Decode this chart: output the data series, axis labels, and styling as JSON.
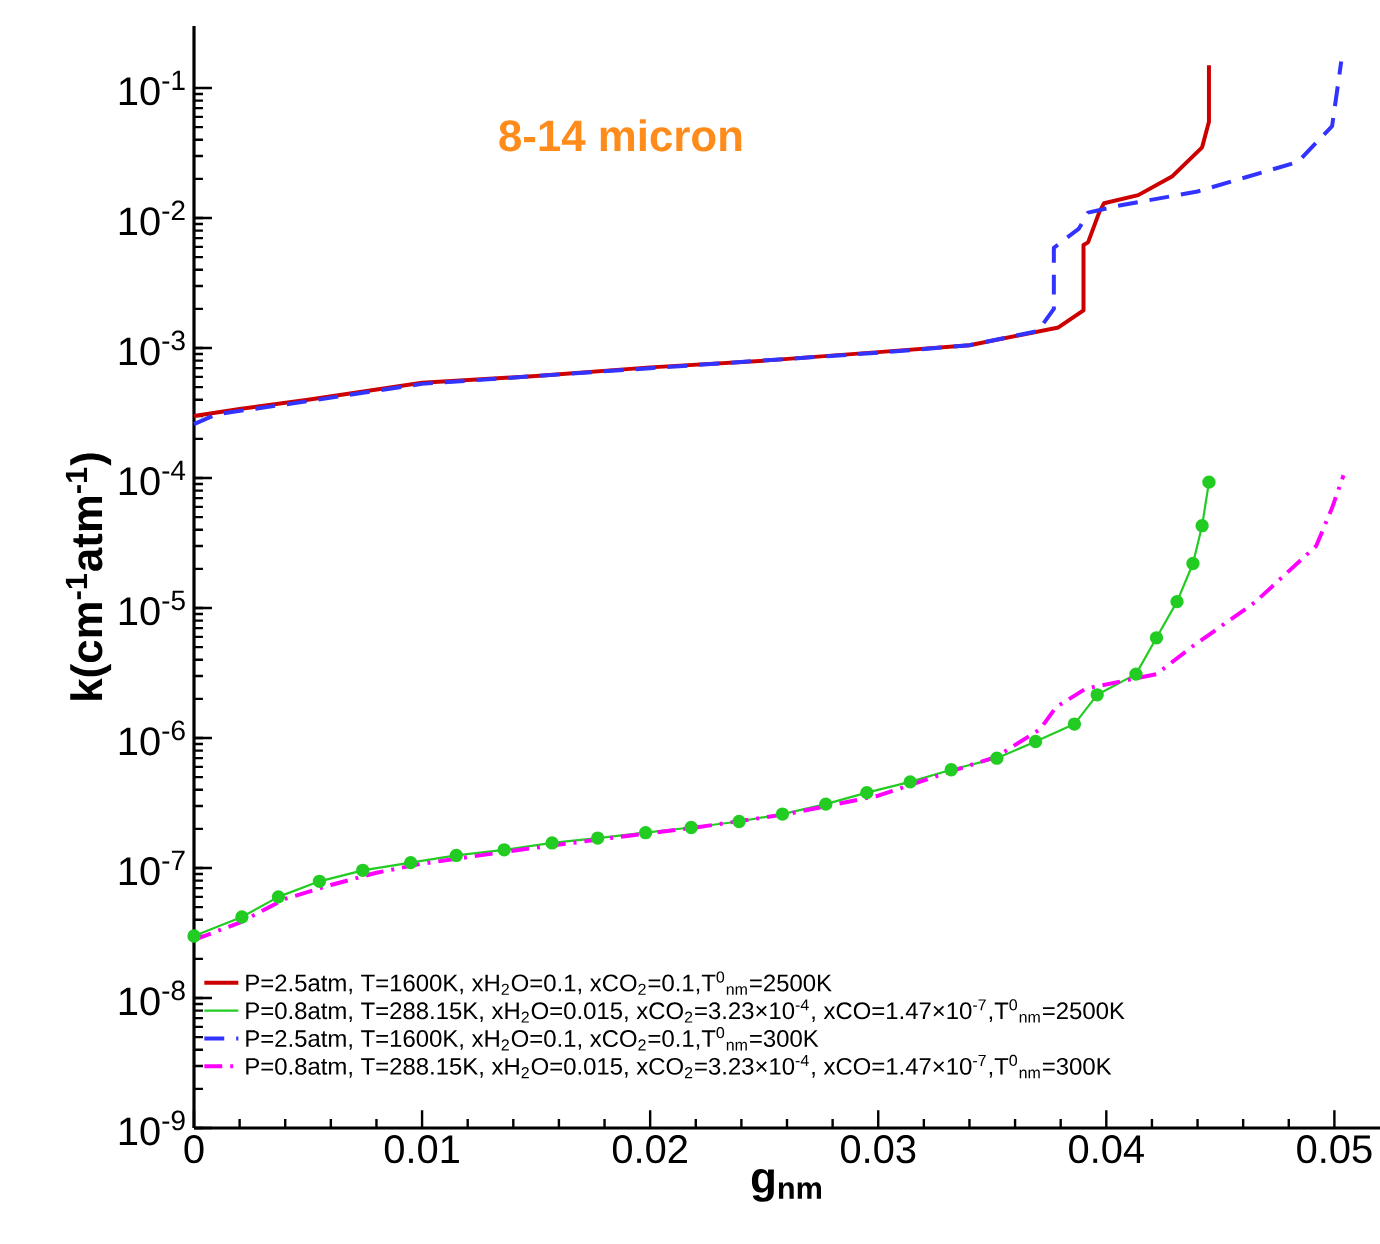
{
  "chart_data": {
    "type": "line",
    "title": "8-14 micron",
    "xlabel": "g$_{nm}$",
    "ylabel": "k(cm$^{-1}$atm$^{-1}$)",
    "log": "y",
    "legend": "bottom left",
    "xlim": [
      0,
      0.052
    ],
    "xticks": [
      0,
      0.01,
      0.02,
      0.03,
      0.04,
      0.05
    ],
    "ylim": [
      1e-09,
      0.3
    ],
    "yticks": [
      {
        "value": 1e-09,
        "label": "10$^{-9}$"
      },
      {
        "value": 1e-08,
        "label": "10$^{-8}$"
      },
      {
        "value": 1e-07,
        "label": "10$^{-7}$"
      },
      {
        "value": 1e-06,
        "label": "10$^{-6}$"
      },
      {
        "value": 1e-05,
        "label": "10$^{-5}$"
      },
      {
        "value": 0.0001,
        "label": "10$^{-4}$"
      },
      {
        "value": 0.001,
        "label": "10$^{-3}$"
      },
      {
        "value": 0.01,
        "label": "10$^{-2}$"
      },
      {
        "value": 0.1,
        "label": "10$^{-1}$"
      }
    ],
    "series": [
      {
        "name": "P=2.5atm, T=1600K, xH$_{2}$O=0.1, xCO$_{2}$=0.1,T$^{0}$$_{nm}$=2500K",
        "color": "#cc0000",
        "line_style": "solid",
        "marker": "none",
        "x": [
          0,
          0.002,
          0.005,
          0.01,
          0.015,
          0.02,
          0.025,
          0.03,
          0.034,
          0.0379,
          0.039,
          0.039,
          0.0392,
          0.0397,
          0.0399,
          0.0414,
          0.0429,
          0.0442,
          0.0445,
          0.0445
        ],
        "values": [
          0.0003,
          0.00034,
          0.0004,
          0.00054,
          0.00061,
          0.00071,
          0.0008,
          0.00093,
          0.00105,
          0.00144,
          0.00195,
          0.0062,
          0.0065,
          0.0112,
          0.013,
          0.015,
          0.021,
          0.035,
          0.055,
          0.15
        ]
      },
      {
        "name": "P=0.8atm, T=288.15K, xH$_{2}$O=0.015, xCO$_{2}$=3.23×10$^{-4}$, xCO=1.47×10$^{-7}$,T$^{0}$$_{nm}$=2500K",
        "color": "#22cc22",
        "line_style": "solid",
        "marker": "circle",
        "x": [
          0,
          0.0021,
          0.0037,
          0.0055,
          0.0074,
          0.0095,
          0.0115,
          0.0136,
          0.0157,
          0.0177,
          0.0198,
          0.0218,
          0.0239,
          0.0258,
          0.0277,
          0.0295,
          0.0314,
          0.0332,
          0.0352,
          0.0369,
          0.0386,
          0.0396,
          0.0413,
          0.0422,
          0.0431,
          0.0438,
          0.0442,
          0.0445
        ],
        "values": [
          3e-08,
          4.2e-08,
          6e-08,
          7.9e-08,
          9.6e-08,
          1.1e-07,
          1.25e-07,
          1.38e-07,
          1.56e-07,
          1.7e-07,
          1.87e-07,
          2.05e-07,
          2.28e-07,
          2.6e-07,
          3.1e-07,
          3.8e-07,
          4.6e-07,
          5.7e-07,
          7e-07,
          9.4e-07,
          1.28e-06,
          2.15e-06,
          3.1e-06,
          5.9e-06,
          1.12e-05,
          2.2e-05,
          4.3e-05,
          9.3e-05
        ]
      },
      {
        "name": "P=2.5atm, T=1600K, xH$_{2}$O=0.1, xCO$_{2}$=0.1,T$^{0}$$_{nm}$=300K",
        "color": "#3333ff",
        "line_style": "dashed",
        "marker": "none",
        "x": [
          0,
          0.001,
          0.005,
          0.01,
          0.02,
          0.03,
          0.034,
          0.037,
          0.0377,
          0.0377,
          0.0388,
          0.0392,
          0.0405,
          0.044,
          0.0484,
          0.0499,
          0.0503
        ],
        "values": [
          0.00026,
          0.00031,
          0.00039,
          0.00053,
          0.0007,
          0.00092,
          0.00105,
          0.00135,
          0.002,
          0.0059,
          0.0083,
          0.011,
          0.0124,
          0.016,
          0.027,
          0.051,
          0.16
        ]
      },
      {
        "name": "P=0.8atm, T=288.15K, xH$_{2}$O=0.015, xCO$_{2}$=3.23×10$^{-4}$, xCO=1.47×10$^{-7}$,T$^{0}$$_{nm}$=300K",
        "color": "#ff00ff",
        "line_style": "dashdot",
        "marker": "none",
        "x": [
          0,
          0.002,
          0.004,
          0.006,
          0.008,
          0.01,
          0.014,
          0.018,
          0.022,
          0.026,
          0.03,
          0.033,
          0.0352,
          0.0371,
          0.0378,
          0.0391,
          0.0422,
          0.0438,
          0.0465,
          0.0492,
          0.0499,
          0.0504
        ],
        "values": [
          2.8e-08,
          3.8e-08,
          5.8e-08,
          7.4e-08,
          9.2e-08,
          1.08e-07,
          1.36e-07,
          1.68e-07,
          2.05e-07,
          2.6e-07,
          3.6e-07,
          5.4e-07,
          7.2e-07,
          1.17e-06,
          1.73e-06,
          2.4e-06,
          3.1e-06,
          5.1e-06,
          1.1e-05,
          3e-05,
          5.9e-05,
          0.000105
        ]
      }
    ]
  }
}
